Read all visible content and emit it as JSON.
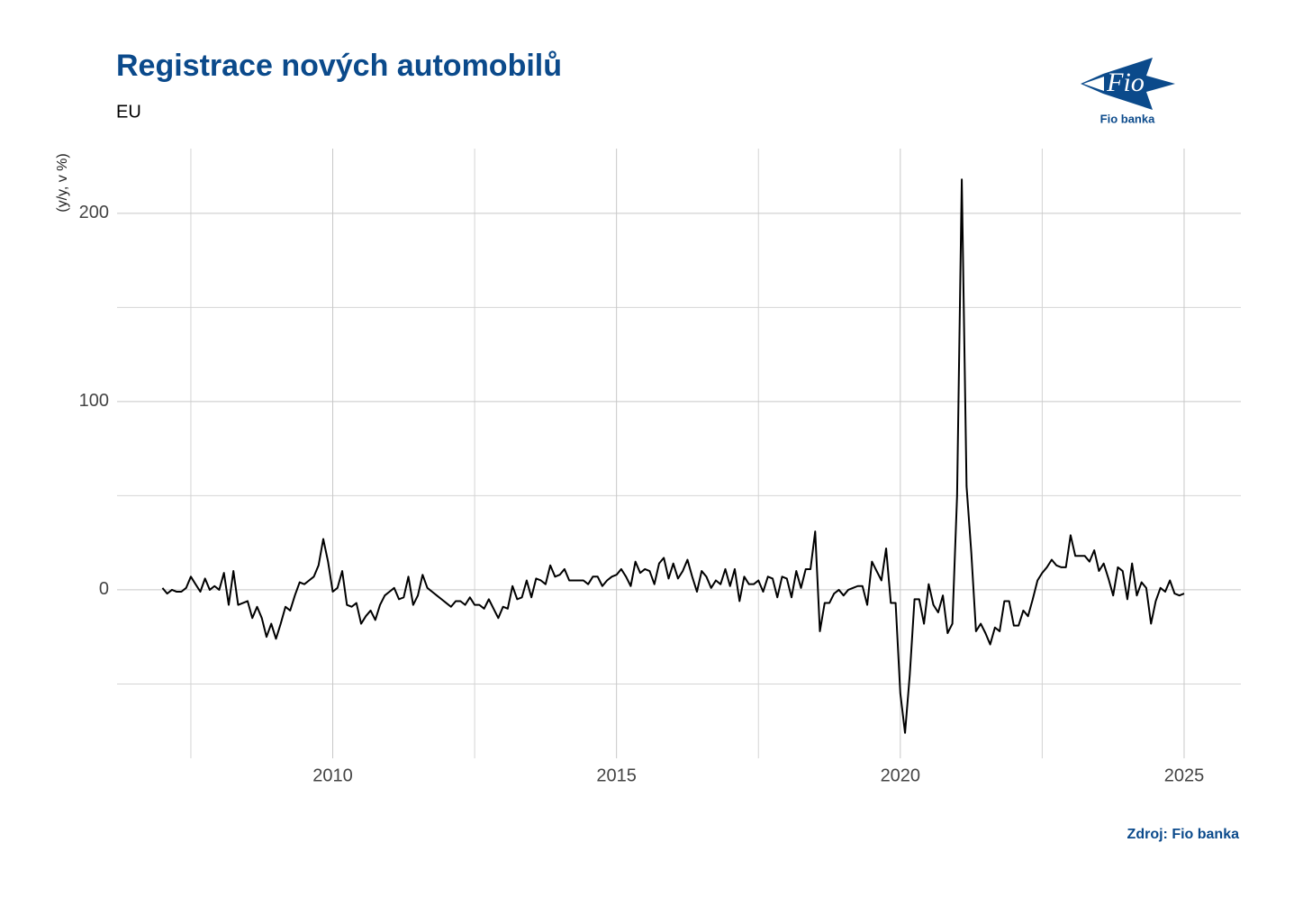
{
  "chart_data": {
    "type": "line",
    "title": "Registrace nových automobilů",
    "subtitle": "EU",
    "y_label": "(y/y, v %)",
    "source": "Zdroj: Fio banka",
    "logo": {
      "mark": "Fio",
      "name": "Fio banka"
    },
    "color": "#000000",
    "grid": true,
    "xlim": [
      2006.2,
      2026.0
    ],
    "xticks": [
      2010,
      2015,
      2020,
      2025
    ],
    "xminor": [
      2007.5,
      2012.5,
      2017.5,
      2022.5
    ],
    "ylim": [
      -89.5,
      234.4
    ],
    "yticks": [
      0,
      100,
      200
    ],
    "yminor": [
      -50,
      50,
      150
    ],
    "x": [
      2007.0,
      2007.083,
      2007.167,
      2007.25,
      2007.333,
      2007.417,
      2007.5,
      2007.583,
      2007.667,
      2007.75,
      2007.833,
      2007.917,
      2008.0,
      2008.083,
      2008.167,
      2008.25,
      2008.333,
      2008.417,
      2008.5,
      2008.583,
      2008.667,
      2008.75,
      2008.833,
      2008.917,
      2009.0,
      2009.083,
      2009.167,
      2009.25,
      2009.333,
      2009.417,
      2009.5,
      2009.583,
      2009.667,
      2009.75,
      2009.833,
      2009.917,
      2010.0,
      2010.083,
      2010.167,
      2010.25,
      2010.333,
      2010.417,
      2010.5,
      2010.583,
      2010.667,
      2010.75,
      2010.833,
      2010.917,
      2011.0,
      2011.083,
      2011.167,
      2011.25,
      2011.333,
      2011.417,
      2011.5,
      2011.583,
      2011.667,
      2011.75,
      2011.833,
      2011.917,
      2012.0,
      2012.083,
      2012.167,
      2012.25,
      2012.333,
      2012.417,
      2012.5,
      2012.583,
      2012.667,
      2012.75,
      2012.833,
      2012.917,
      2013.0,
      2013.083,
      2013.167,
      2013.25,
      2013.333,
      2013.417,
      2013.5,
      2013.583,
      2013.667,
      2013.75,
      2013.833,
      2013.917,
      2014.0,
      2014.083,
      2014.167,
      2014.25,
      2014.333,
      2014.417,
      2014.5,
      2014.583,
      2014.667,
      2014.75,
      2014.833,
      2014.917,
      2015.0,
      2015.083,
      2015.167,
      2015.25,
      2015.333,
      2015.417,
      2015.5,
      2015.583,
      2015.667,
      2015.75,
      2015.833,
      2015.917,
      2016.0,
      2016.083,
      2016.167,
      2016.25,
      2016.333,
      2016.417,
      2016.5,
      2016.583,
      2016.667,
      2016.75,
      2016.833,
      2016.917,
      2017.0,
      2017.083,
      2017.167,
      2017.25,
      2017.333,
      2017.417,
      2017.5,
      2017.583,
      2017.667,
      2017.75,
      2017.833,
      2017.917,
      2018.0,
      2018.083,
      2018.167,
      2018.25,
      2018.333,
      2018.417,
      2018.5,
      2018.583,
      2018.667,
      2018.75,
      2018.833,
      2018.917,
      2019.0,
      2019.083,
      2019.167,
      2019.25,
      2019.333,
      2019.417,
      2019.5,
      2019.583,
      2019.667,
      2019.75,
      2019.833,
      2019.917,
      2020.0,
      2020.083,
      2020.167,
      2020.25,
      2020.333,
      2020.417,
      2020.5,
      2020.583,
      2020.667,
      2020.75,
      2020.833,
      2020.917,
      2021.0,
      2021.083,
      2021.167,
      2021.25,
      2021.333,
      2021.417,
      2021.5,
      2021.583,
      2021.667,
      2021.75,
      2021.833,
      2021.917,
      2022.0,
      2022.083,
      2022.167,
      2022.25,
      2022.333,
      2022.417,
      2022.5,
      2022.583,
      2022.667,
      2022.75,
      2022.833,
      2022.917,
      2023.0,
      2023.083,
      2023.167,
      2023.25,
      2023.333,
      2023.417,
      2023.5,
      2023.583,
      2023.667,
      2023.75,
      2023.833,
      2023.917,
      2024.0,
      2024.083,
      2024.167,
      2024.25,
      2024.333,
      2024.417,
      2024.5,
      2024.583,
      2024.667,
      2024.75,
      2024.833,
      2024.917,
      2025.0
    ],
    "values": [
      1,
      -2,
      0,
      -1,
      -1,
      1,
      7,
      3,
      -1,
      6,
      0,
      2,
      0,
      9,
      -8,
      10,
      -8,
      -7,
      -6,
      -15,
      -9,
      -15,
      -25,
      -18,
      -26,
      -18,
      -9,
      -11,
      -3,
      4,
      3,
      5,
      7,
      13,
      27,
      15,
      -1,
      1,
      10,
      -8,
      -9,
      -7,
      -18,
      -14,
      -11,
      -16,
      -8,
      -3,
      -1,
      1,
      -5,
      -4,
      7,
      -8,
      -3,
      8,
      1,
      -1,
      -3,
      -5,
      -7,
      -9,
      -6,
      -6,
      -8,
      -4,
      -8,
      -8,
      -10,
      -5,
      -10,
      -15,
      -9,
      -10,
      2,
      -5,
      -4,
      5,
      -4,
      6,
      5,
      3,
      13,
      7,
      8,
      11,
      5,
      5,
      5,
      5,
      3,
      7,
      7,
      2,
      5,
      7,
      8,
      11,
      7,
      2,
      15,
      9,
      11,
      10,
      3,
      14,
      17,
      6,
      14,
      6,
      10,
      16,
      7,
      -1,
      10,
      7,
      1,
      5,
      3,
      11,
      2,
      11,
      -6,
      7,
      3,
      3,
      5,
      -1,
      7,
      6,
      -4,
      7,
      6,
      -4,
      10,
      1,
      11,
      11,
      31,
      -22,
      -7,
      -7,
      -2,
      0,
      -3,
      0,
      1,
      2,
      2,
      -8,
      15,
      10,
      5,
      22,
      -7,
      -7,
      -55,
      -76,
      -45,
      -5,
      -5,
      -18,
      3,
      -8,
      -12,
      -3,
      -23,
      -18,
      50,
      218,
      55,
      20,
      -22,
      -18,
      -23,
      -29,
      -20,
      -22,
      -6,
      -6,
      -19,
      -19,
      -11,
      -14,
      -5,
      5,
      9,
      12,
      16,
      13,
      12,
      12,
      29,
      18,
      18,
      18,
      15,
      21,
      10,
      14,
      6,
      -3,
      12,
      10,
      -5,
      14,
      -3,
      4,
      1,
      -18,
      -6,
      1,
      -1,
      5,
      -2,
      -3,
      -2
    ]
  }
}
